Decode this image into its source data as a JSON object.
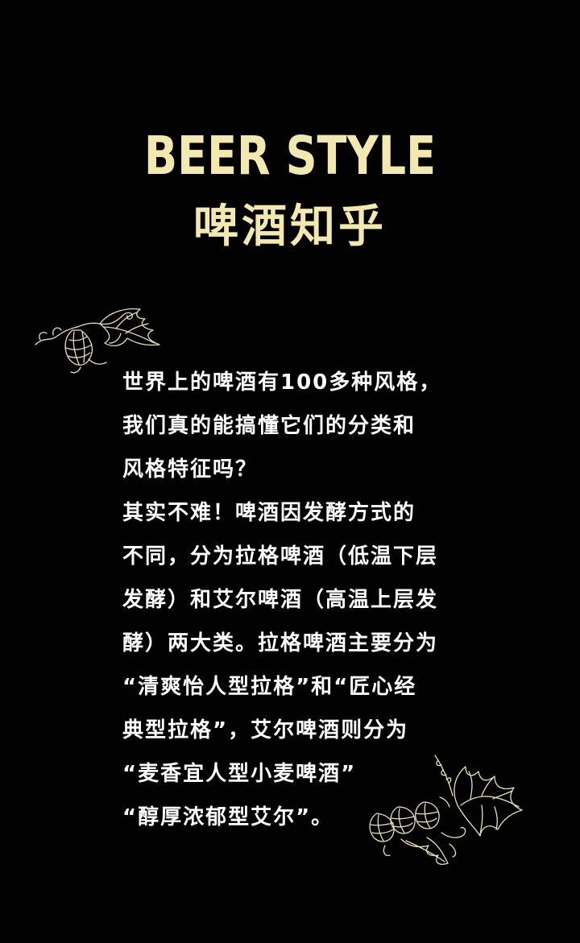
{
  "header": {
    "title_en": "BEER STYLE",
    "title_cn": "啤酒知乎"
  },
  "body": {
    "lines": [
      "世界上的啤酒有100多种风格，",
      "我们真的能搞懂它们的分类和",
      "风格特征吗？",
      "其实不难！啤酒因发酵方式的",
      "不同，分为拉格啤酒（低温下层",
      "发酵）和艾尔啤酒（高温上层发",
      "酵）两大类。拉格啤酒主要分为",
      "“清爽怡人型拉格”和“匠心经",
      "典型拉格”，艾尔啤酒则分为",
      "“麦香宜人型小麦啤酒”",
      "“醇厚浓郁型艾尔”。"
    ]
  },
  "decor": {
    "top_icon": "hop-branch-icon",
    "bottom_icon": "hop-cluster-icon"
  },
  "colors": {
    "background": "#020202",
    "title": "#f3e9b0",
    "body_text": "#ffffff",
    "decor_stroke": "#e8dfb8"
  }
}
